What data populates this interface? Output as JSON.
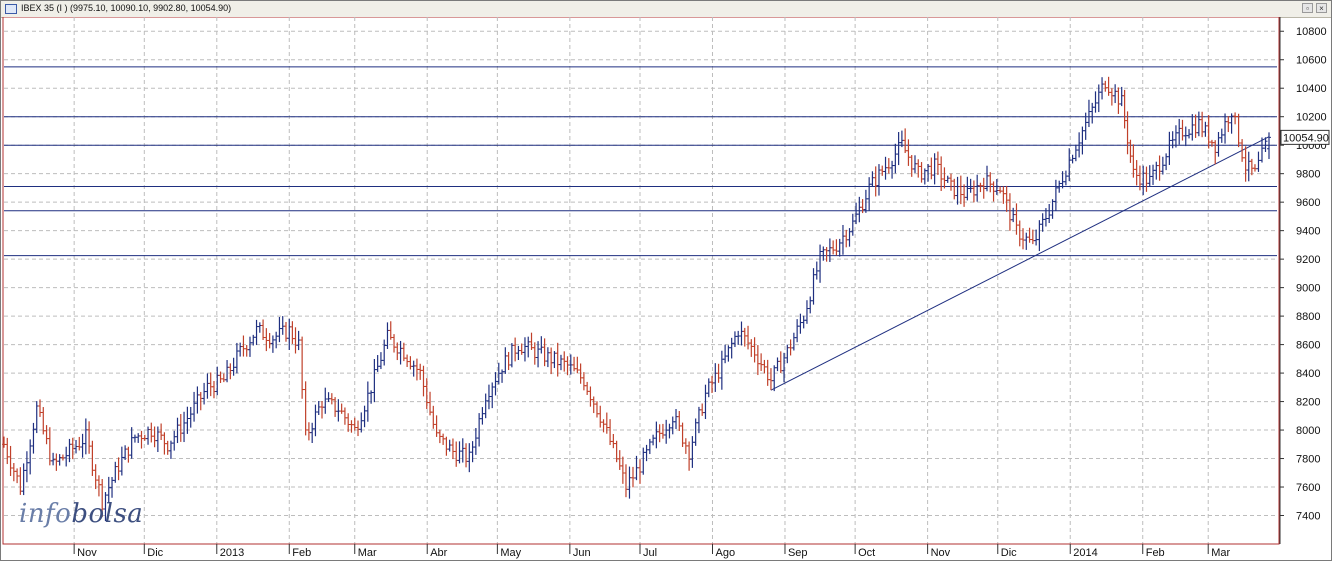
{
  "window": {
    "title": "IBEX 35 (I ) (9975.10, 10090.10, 9902.80, 10054.90)"
  },
  "logo": {
    "part1": "info",
    "part2": "bolsa"
  },
  "colors": {
    "up": "#1f2f80",
    "down": "#c0402a",
    "grid": "#bdbdbd",
    "hline": "#1f2f80",
    "trend": "#1f2f80",
    "frame": "#b03030"
  },
  "chart_data": {
    "type": "ohlc",
    "title": "IBEX 35 (I ) (9975.10, 10090.10, 9902.80, 10054.90)",
    "ylim": [
      7200,
      10900
    ],
    "yticks": [
      7400,
      7600,
      7800,
      8000,
      8200,
      8400,
      8600,
      8800,
      9000,
      9200,
      9400,
      9600,
      9800,
      10000,
      10200,
      10400,
      10600,
      10800
    ],
    "last_value": 10054.9,
    "last_label": "10054.90",
    "grid": true,
    "x_range": [
      "2012-10-02",
      "2014-03-27"
    ],
    "month_labels": [
      {
        "date": "2012-11-01",
        "label": "Nov"
      },
      {
        "date": "2012-12-01",
        "label": "Dic"
      },
      {
        "date": "2013-01-01",
        "label": "2013"
      },
      {
        "date": "2013-02-01",
        "label": "Feb"
      },
      {
        "date": "2013-03-01",
        "label": "Mar"
      },
      {
        "date": "2013-04-01",
        "label": "Abr"
      },
      {
        "date": "2013-05-01",
        "label": "May"
      },
      {
        "date": "2013-06-01",
        "label": "Jun"
      },
      {
        "date": "2013-07-01",
        "label": "Jul"
      },
      {
        "date": "2013-08-01",
        "label": "Ago"
      },
      {
        "date": "2013-09-01",
        "label": "Sep"
      },
      {
        "date": "2013-10-01",
        "label": "Oct"
      },
      {
        "date": "2013-11-01",
        "label": "Nov"
      },
      {
        "date": "2013-12-01",
        "label": "Dic"
      },
      {
        "date": "2014-01-01",
        "label": "2014"
      },
      {
        "date": "2014-02-01",
        "label": "Feb"
      },
      {
        "date": "2014-03-01",
        "label": "Mar"
      }
    ],
    "horizontal_lines": [
      10550,
      10200,
      10000,
      9710,
      9540,
      9225
    ],
    "trendline": {
      "start": [
        "2013-08-26",
        8280
      ],
      "end": [
        "2014-03-27",
        10060
      ]
    },
    "series": [
      {
        "points": [
          [
            "2012-10-02",
            7900
          ],
          [
            "2012-10-09",
            7600
          ],
          [
            "2012-10-16",
            8150
          ],
          [
            "2012-10-23",
            7750
          ],
          [
            "2012-10-30",
            7850
          ],
          [
            "2012-11-06",
            7950
          ],
          [
            "2012-11-13",
            7500
          ],
          [
            "2012-11-20",
            7750
          ],
          [
            "2012-11-27",
            7950
          ],
          [
            "2012-12-04",
            8000
          ],
          [
            "2012-12-11",
            7900
          ],
          [
            "2012-12-18",
            8050
          ],
          [
            "2012-12-28",
            8300
          ],
          [
            "2013-01-04",
            8350
          ],
          [
            "2013-01-11",
            8550
          ],
          [
            "2013-01-18",
            8700
          ],
          [
            "2013-01-25",
            8650
          ],
          [
            "2013-02-01",
            8700
          ],
          [
            "2013-02-05",
            8600
          ],
          [
            "2013-02-08",
            7950
          ],
          [
            "2013-02-15",
            8200
          ],
          [
            "2013-02-22",
            8150
          ],
          [
            "2013-03-01",
            8000
          ],
          [
            "2013-03-08",
            8300
          ],
          [
            "2013-03-15",
            8650
          ],
          [
            "2013-03-22",
            8550
          ],
          [
            "2013-03-29",
            8400
          ],
          [
            "2013-04-05",
            7950
          ],
          [
            "2013-04-12",
            7850
          ],
          [
            "2013-04-19",
            7800
          ],
          [
            "2013-04-26",
            8250
          ],
          [
            "2013-05-03",
            8450
          ],
          [
            "2013-05-10",
            8600
          ],
          [
            "2013-05-17",
            8550
          ],
          [
            "2013-05-24",
            8500
          ],
          [
            "2013-05-31",
            8450
          ],
          [
            "2013-06-07",
            8350
          ],
          [
            "2013-06-14",
            8100
          ],
          [
            "2013-06-21",
            7800
          ],
          [
            "2013-06-25",
            7600
          ],
          [
            "2013-07-01",
            7750
          ],
          [
            "2013-07-08",
            7950
          ],
          [
            "2013-07-15",
            8100
          ],
          [
            "2013-07-22",
            7850
          ],
          [
            "2013-07-29",
            8250
          ],
          [
            "2013-08-05",
            8450
          ],
          [
            "2013-08-12",
            8700
          ],
          [
            "2013-08-19",
            8550
          ],
          [
            "2013-08-26",
            8350
          ],
          [
            "2013-09-02",
            8550
          ],
          [
            "2013-09-09",
            8800
          ],
          [
            "2013-09-16",
            9200
          ],
          [
            "2013-09-23",
            9300
          ],
          [
            "2013-09-30",
            9450
          ],
          [
            "2013-10-07",
            9700
          ],
          [
            "2013-10-14",
            9850
          ],
          [
            "2013-10-21",
            10000
          ],
          [
            "2013-10-28",
            9800
          ],
          [
            "2013-11-04",
            9850
          ],
          [
            "2013-11-11",
            9700
          ],
          [
            "2013-11-18",
            9650
          ],
          [
            "2013-11-25",
            9750
          ],
          [
            "2013-12-02",
            9700
          ],
          [
            "2013-12-09",
            9400
          ],
          [
            "2013-12-16",
            9300
          ],
          [
            "2013-12-23",
            9550
          ],
          [
            "2014-01-02",
            9950
          ],
          [
            "2014-01-09",
            10200
          ],
          [
            "2014-01-16",
            10450
          ],
          [
            "2014-01-23",
            10300
          ],
          [
            "2014-01-28",
            9800
          ],
          [
            "2014-02-04",
            9750
          ],
          [
            "2014-02-11",
            9950
          ],
          [
            "2014-02-18",
            10100
          ],
          [
            "2014-02-25",
            10150
          ],
          [
            "2014-03-04",
            10000
          ],
          [
            "2014-03-11",
            10250
          ],
          [
            "2014-03-17",
            9850
          ],
          [
            "2014-03-21",
            9800
          ],
          [
            "2014-03-27",
            10054.9
          ]
        ]
      }
    ]
  }
}
